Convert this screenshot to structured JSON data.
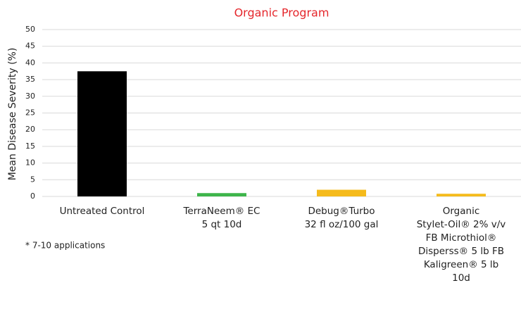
{
  "chart_data": {
    "type": "bar",
    "subtitle": "Organic Program",
    "ylabel": "Mean Disease Severity (%)",
    "categories": [
      [
        "Untreated Control"
      ],
      [
        "TerraNeem® EC",
        "5 qt 10d"
      ],
      [
        "Debug®Turbo",
        "32 fl oz/100 gal"
      ],
      [
        "Organic",
        "Stylet-Oil® 2% v/v",
        "FB Microthiol®",
        "Disperss® 5 lb FB",
        "Kaligreen® 5 lb",
        "10d"
      ]
    ],
    "values": [
      37.5,
      1,
      2,
      0.8
    ],
    "colors": [
      "#000000",
      "#3db54a",
      "#f5bb1c",
      "#f5bb1c"
    ],
    "ylim": [
      0,
      50
    ],
    "yticks": [
      0,
      5,
      10,
      15,
      20,
      25,
      30,
      35,
      40,
      45,
      50
    ],
    "grid": true,
    "annotation": "* 7-10 applications"
  }
}
